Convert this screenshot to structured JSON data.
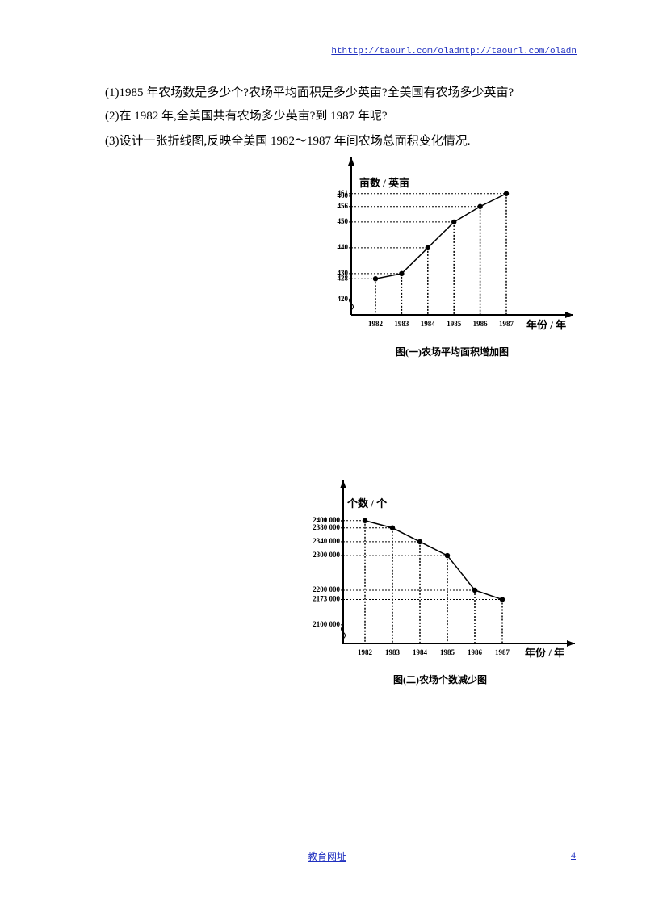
{
  "header": {
    "link": "hthttp://taourl.com/oladntp://taourl.com/oladn"
  },
  "questions": [
    "(1)1985 年农场数是多少个?农场平均面积是多少英亩?全美国有农场多少英亩?",
    "(2)在 1982 年,全美国共有农场多少英亩?到 1987 年呢?",
    "(3)设计一张折线图,反映全美国 1982～1987 年间农场总面积变化情况."
  ],
  "chart_data": [
    {
      "type": "line",
      "y_label": "亩数 / 英亩",
      "x_label": "年份 / 年",
      "caption": "图(一)农场平均面积增加图",
      "categories": [
        "1982",
        "1983",
        "1984",
        "1985",
        "1986",
        "1987"
      ],
      "values": [
        428,
        430,
        440,
        450,
        456,
        461
      ],
      "color": "#000000",
      "ylim": [
        414,
        475
      ],
      "yticks": [
        420,
        428,
        430,
        440,
        450,
        456,
        460,
        461
      ]
    },
    {
      "type": "line",
      "y_label": "个数 / 个",
      "x_label": "年份 / 年",
      "caption": "图(二)农场个数减少图",
      "categories": [
        "1982",
        "1983",
        "1984",
        "1985",
        "1986",
        "1987"
      ],
      "values": [
        2401000,
        2380000,
        2340000,
        2300000,
        2200000,
        2173000
      ],
      "color": "#000000",
      "ylim": [
        2046000,
        2517000
      ],
      "yticks": [
        {
          "value": 2100000,
          "label": "2100 000"
        },
        {
          "value": 2173000,
          "label": "2173 000"
        },
        {
          "value": 2200000,
          "label": "2200 000"
        },
        {
          "value": 2300000,
          "label": "2300 000"
        },
        {
          "value": 2340000,
          "label": "2340 000"
        },
        {
          "value": 2380000,
          "label": "2380 000"
        },
        {
          "value": 2400000,
          "label": "2400 000"
        },
        {
          "value": 2401000,
          "label": "2401 000"
        }
      ]
    }
  ],
  "footer": {
    "link": "教育网址",
    "page": "4"
  }
}
